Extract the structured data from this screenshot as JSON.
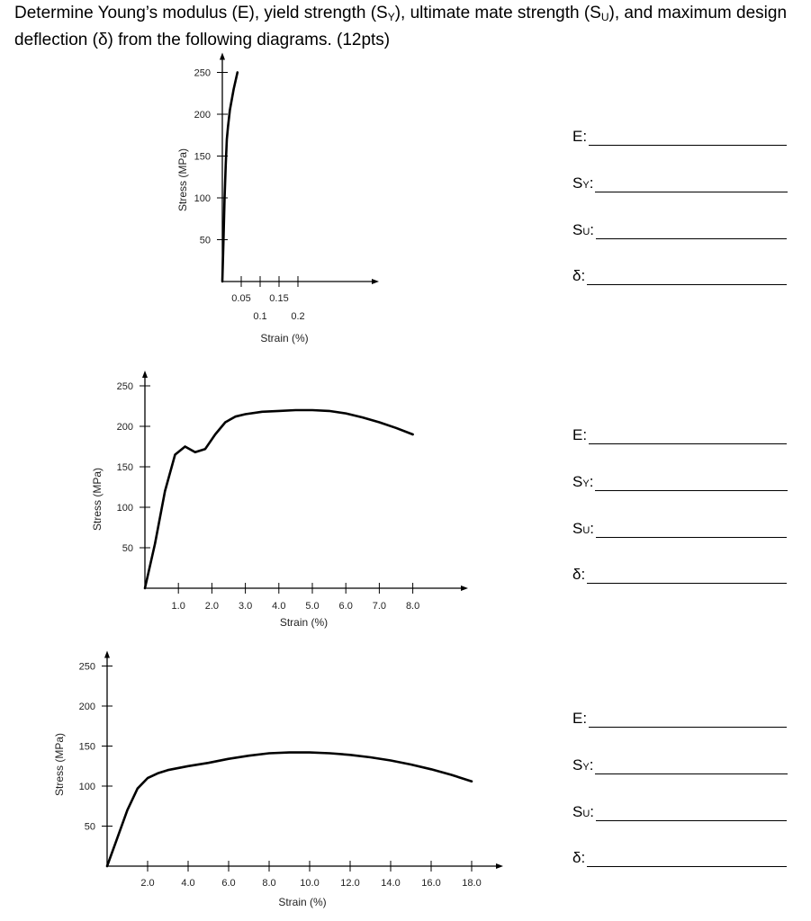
{
  "question": {
    "parts": [
      {
        "t": "Determine Young’s modulus (E), yield strength (S"
      },
      {
        "t": "Y",
        "sub": true
      },
      {
        "t": "), ultimate mate strength (S"
      },
      {
        "t": "U",
        "sub": true
      },
      {
        "t": "), and maximum design deflection (δ) from the following diagrams. (12pts)"
      }
    ]
  },
  "answer_labels": [
    {
      "main": "E",
      "sub": "",
      "suffix": ":"
    },
    {
      "main": "S",
      "sub": "Y",
      "suffix": ":"
    },
    {
      "main": "S",
      "sub": "U",
      "suffix": ":"
    },
    {
      "main": "δ",
      "sub": "",
      "suffix": ":"
    }
  ],
  "chart_data": [
    {
      "type": "line",
      "title": "",
      "xlabel": "Strain (%)",
      "ylabel": "Stress (MPa)",
      "xlim": [
        0,
        0.25
      ],
      "ylim": [
        0,
        250
      ],
      "x_ticks": [
        0.05,
        0.1,
        0.15,
        0.2
      ],
      "x_tick_labels": [
        "0.05",
        "0.1",
        "0.15",
        "0.2"
      ],
      "x_tick_labels_staggered": true,
      "y_ticks": [
        50,
        100,
        150,
        200,
        250
      ],
      "y_tick_labels": [
        "50",
        "100",
        "150",
        "200",
        "250"
      ],
      "grid": false,
      "series": [
        {
          "x": [
            0,
            0.003,
            0.006,
            0.009,
            0.012,
            0.015,
            0.02,
            0.03,
            0.04
          ],
          "y": [
            0,
            50,
            100,
            140,
            170,
            185,
            205,
            230,
            250
          ]
        }
      ]
    },
    {
      "type": "line",
      "title": "",
      "xlabel": "Strain (%)",
      "ylabel": "Stress (MPa)",
      "xlim": [
        0,
        9.5
      ],
      "ylim": [
        0,
        250
      ],
      "x_ticks": [
        1,
        2,
        3,
        4,
        5,
        6,
        7,
        8
      ],
      "x_tick_labels": [
        "1.0",
        "2.0",
        "3.0",
        "4.0",
        "5.0",
        "6.0",
        "7.0",
        "8.0"
      ],
      "x_tick_labels_staggered": false,
      "y_ticks": [
        50,
        100,
        150,
        200,
        250
      ],
      "y_tick_labels": [
        "50",
        "100",
        "150",
        "200",
        "250"
      ],
      "grid": false,
      "series": [
        {
          "x": [
            0,
            0.3,
            0.6,
            0.9,
            1.2,
            1.5,
            1.8,
            2.1,
            2.4,
            2.7,
            3.0,
            3.5,
            4.0,
            4.5,
            5.0,
            5.5,
            6.0,
            6.5,
            7.0,
            7.5,
            8.0
          ],
          "y": [
            0,
            55,
            120,
            165,
            175,
            168,
            172,
            190,
            205,
            212,
            215,
            218,
            219,
            220,
            220,
            219,
            216,
            211,
            205,
            198,
            190
          ]
        }
      ]
    },
    {
      "type": "line",
      "title": "",
      "xlabel": "Strain (%)",
      "ylabel": "Stress (MPa)",
      "xlim": [
        0,
        19.5
      ],
      "ylim": [
        0,
        250
      ],
      "x_ticks": [
        2,
        4,
        6,
        8,
        10,
        12,
        14,
        16,
        18
      ],
      "x_tick_labels": [
        "2.0",
        "4.0",
        "6.0",
        "8.0",
        "10.0",
        "12.0",
        "14.0",
        "16.0",
        "18.0"
      ],
      "x_tick_labels_staggered": false,
      "y_ticks": [
        50,
        100,
        150,
        200,
        250
      ],
      "y_tick_labels": [
        "50",
        "100",
        "150",
        "200",
        "250"
      ],
      "grid": false,
      "series": [
        {
          "x": [
            0,
            0.5,
            1.0,
            1.5,
            2.0,
            2.5,
            3.0,
            4.0,
            5.0,
            6.0,
            7.0,
            8.0,
            9.0,
            10.0,
            11.0,
            12.0,
            13.0,
            14.0,
            15.0,
            16.0,
            17.0,
            18.0
          ],
          "y": [
            0,
            35,
            70,
            97,
            110,
            116,
            120,
            125,
            129,
            134,
            138,
            141,
            142,
            142,
            141,
            139,
            136,
            132,
            127,
            121,
            114,
            106
          ]
        }
      ]
    }
  ]
}
